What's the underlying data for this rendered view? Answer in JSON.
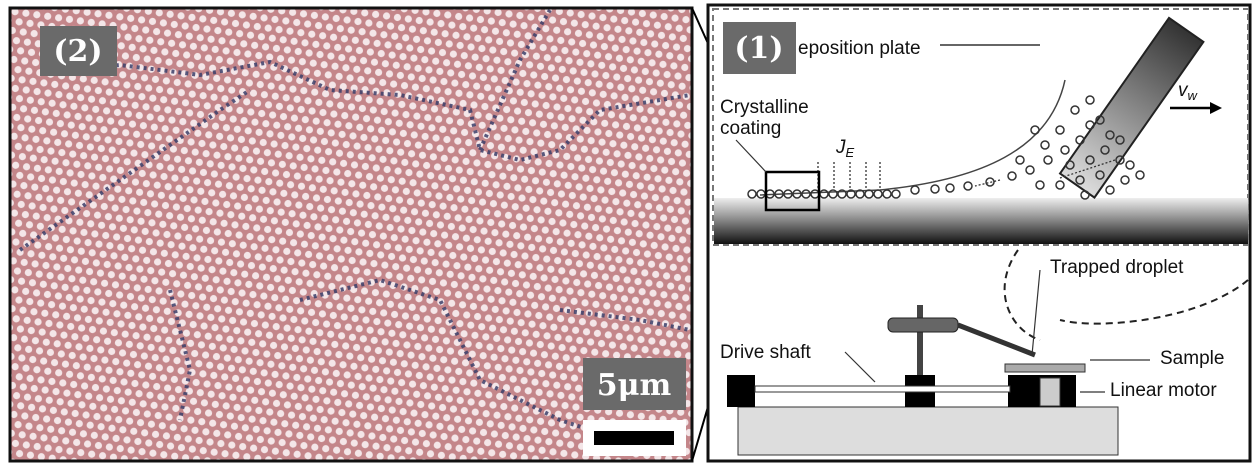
{
  "left_panel": {
    "label": "(2)",
    "scale_bar": "5μm"
  },
  "right_panel": {
    "label": "(1)",
    "deposition_plate": "eposition plate",
    "crystalline_coating": [
      "Crystalline",
      "coating"
    ],
    "flux": "J",
    "flux_sub": "E",
    "velocity": "v",
    "velocity_sub": "w",
    "trapped_droplet": "Trapped droplet",
    "drive_shaft": "Drive shaft",
    "sample": "Sample",
    "linear_motor": "Linear motor"
  }
}
